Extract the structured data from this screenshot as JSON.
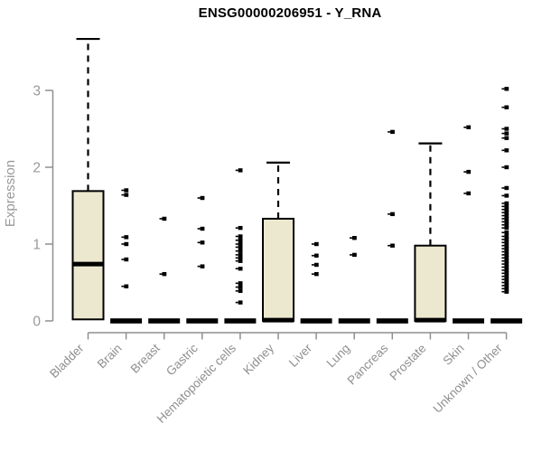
{
  "title": "ENSG00000206951 - Y_RNA",
  "chart_data": {
    "type": "boxplot",
    "title": "ENSG00000206951 - Y_RNA",
    "ylabel": "Expression",
    "xlabel": "",
    "ylim": [
      0,
      3.75
    ],
    "yticks": [
      0,
      1,
      2,
      3
    ],
    "grid": false,
    "legend": "none",
    "categories": [
      "Bladder",
      "Brain",
      "Breast",
      "Gastric",
      "Hematopoietic cells",
      "Kidney",
      "Liver",
      "Lung",
      "Pancreas",
      "Prostate",
      "Skin",
      "Unknown / Other"
    ],
    "series": [
      {
        "category": "Bladder",
        "q1": 0.02,
        "median": 0.74,
        "q3": 1.69,
        "whisker_low": 0.02,
        "whisker_high": 3.67,
        "outliers": []
      },
      {
        "category": "Brain",
        "q1": 0,
        "median": 0,
        "q3": 0,
        "whisker_low": 0,
        "whisker_high": 0,
        "outliers": [
          1.7,
          1.64,
          1.09,
          1.0,
          0.8,
          0.45
        ]
      },
      {
        "category": "Breast",
        "q1": 0,
        "median": 0,
        "q3": 0,
        "whisker_low": 0,
        "whisker_high": 0,
        "outliers": [
          1.33,
          0.61
        ]
      },
      {
        "category": "Gastric",
        "q1": 0,
        "median": 0,
        "q3": 0,
        "whisker_low": 0,
        "whisker_high": 0,
        "outliers": [
          1.6,
          1.2,
          1.02,
          0.71
        ]
      },
      {
        "category": "Hematopoietic cells",
        "q1": 0,
        "median": 0,
        "q3": 0,
        "whisker_low": 0,
        "whisker_high": 0,
        "outliers": [
          1.96,
          1.21,
          1.1,
          1.05,
          1.0,
          0.96,
          0.91,
          0.86,
          0.82,
          0.78,
          0.68,
          0.49,
          0.44,
          0.39,
          0.24
        ]
      },
      {
        "category": "Kidney",
        "q1": 0,
        "median": 0.01,
        "q3": 1.33,
        "whisker_low": 0,
        "whisker_high": 2.06,
        "outliers": []
      },
      {
        "category": "Liver",
        "q1": 0,
        "median": 0,
        "q3": 0,
        "whisker_low": 0,
        "whisker_high": 0,
        "outliers": [
          1.0,
          0.85,
          0.73,
          0.61
        ]
      },
      {
        "category": "Lung",
        "q1": 0,
        "median": 0,
        "q3": 0,
        "whisker_low": 0,
        "whisker_high": 0,
        "outliers": [
          1.08,
          0.86
        ]
      },
      {
        "category": "Pancreas",
        "q1": 0,
        "median": 0,
        "q3": 0,
        "whisker_low": 0,
        "whisker_high": 0,
        "outliers": [
          2.46,
          1.39,
          0.98
        ]
      },
      {
        "category": "Prostate",
        "q1": 0,
        "median": 0.01,
        "q3": 0.98,
        "whisker_low": 0,
        "whisker_high": 2.31,
        "outliers": []
      },
      {
        "category": "Skin",
        "q1": 0,
        "median": 0,
        "q3": 0,
        "whisker_low": 0,
        "whisker_high": 0,
        "outliers": [
          2.52,
          1.94,
          1.66
        ]
      },
      {
        "category": "Unknown / Other",
        "q1": 0,
        "median": 0,
        "q3": 0,
        "whisker_low": 0,
        "whisker_high": 0,
        "outliers": [
          3.02,
          2.78,
          2.5,
          2.44,
          2.38,
          2.22,
          2.0,
          1.73,
          1.63,
          1.53,
          1.49,
          1.45,
          1.41,
          1.37,
          1.33,
          1.29,
          1.25,
          1.21,
          1.15,
          1.1,
          1.06,
          1.02,
          0.98,
          0.94,
          0.9,
          0.86,
          0.82,
          0.78,
          0.74,
          0.7,
          0.66,
          0.62,
          0.58,
          0.54,
          0.5,
          0.46,
          0.42,
          0.38
        ]
      }
    ],
    "colors": {
      "box_fill": "#ece8cf",
      "box_stroke": "#000000",
      "whisker": "#000000",
      "median": "#000000",
      "outlier": "#000000",
      "axis": "#8f8f8f",
      "tick_label": "#999999",
      "category_label": "#8f8f8f",
      "title": "#000000",
      "background": "#ffffff"
    }
  }
}
